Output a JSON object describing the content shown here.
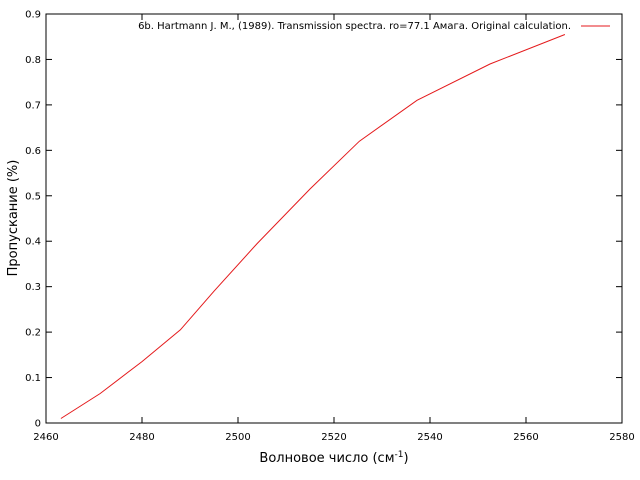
{
  "chart_data": {
    "type": "line",
    "title": "",
    "xlabel": "Волновое число (см",
    "xlabel_sup": "-1",
    "xlabel_close": ")",
    "ylabel": "Пропускание (%)",
    "xlim": [
      2460,
      2580
    ],
    "ylim": [
      0,
      0.9
    ],
    "xticks": [
      2460,
      2480,
      2500,
      2520,
      2540,
      2560,
      2580
    ],
    "yticks": [
      0,
      0.1,
      0.2,
      0.3,
      0.4,
      0.5,
      0.6,
      0.7,
      0.8,
      0.9
    ],
    "grid": false,
    "legend_position": "top-right",
    "series": [
      {
        "name": "6b. Hartmann J. M., (1989). Transmission spectra. ro=77.1 Амага. Original calculation.",
        "color": "#e41a1c",
        "x": [
          2463.1,
          2471.3,
          2480.0,
          2488.0,
          2495.0,
          2504.0,
          2515.0,
          2525.3,
          2537.3,
          2552.5,
          2568.1
        ],
        "y": [
          0.01,
          0.065,
          0.135,
          0.205,
          0.29,
          0.395,
          0.515,
          0.62,
          0.71,
          0.79,
          0.855
        ]
      }
    ]
  }
}
